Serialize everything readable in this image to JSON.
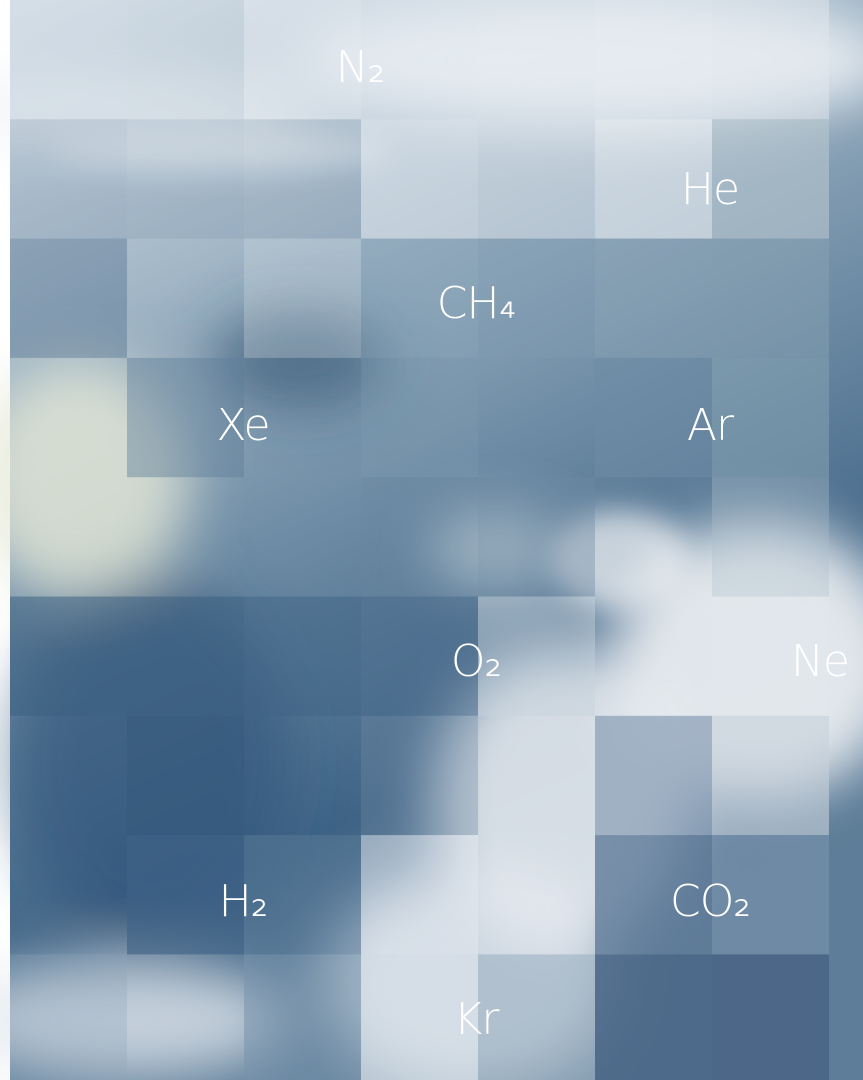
{
  "labels": [
    "N₂",
    "He",
    "CH₄",
    "Xe",
    "Ar",
    "O₂",
    "Ne",
    "H₂",
    "CO₂",
    "Kr"
  ]
}
